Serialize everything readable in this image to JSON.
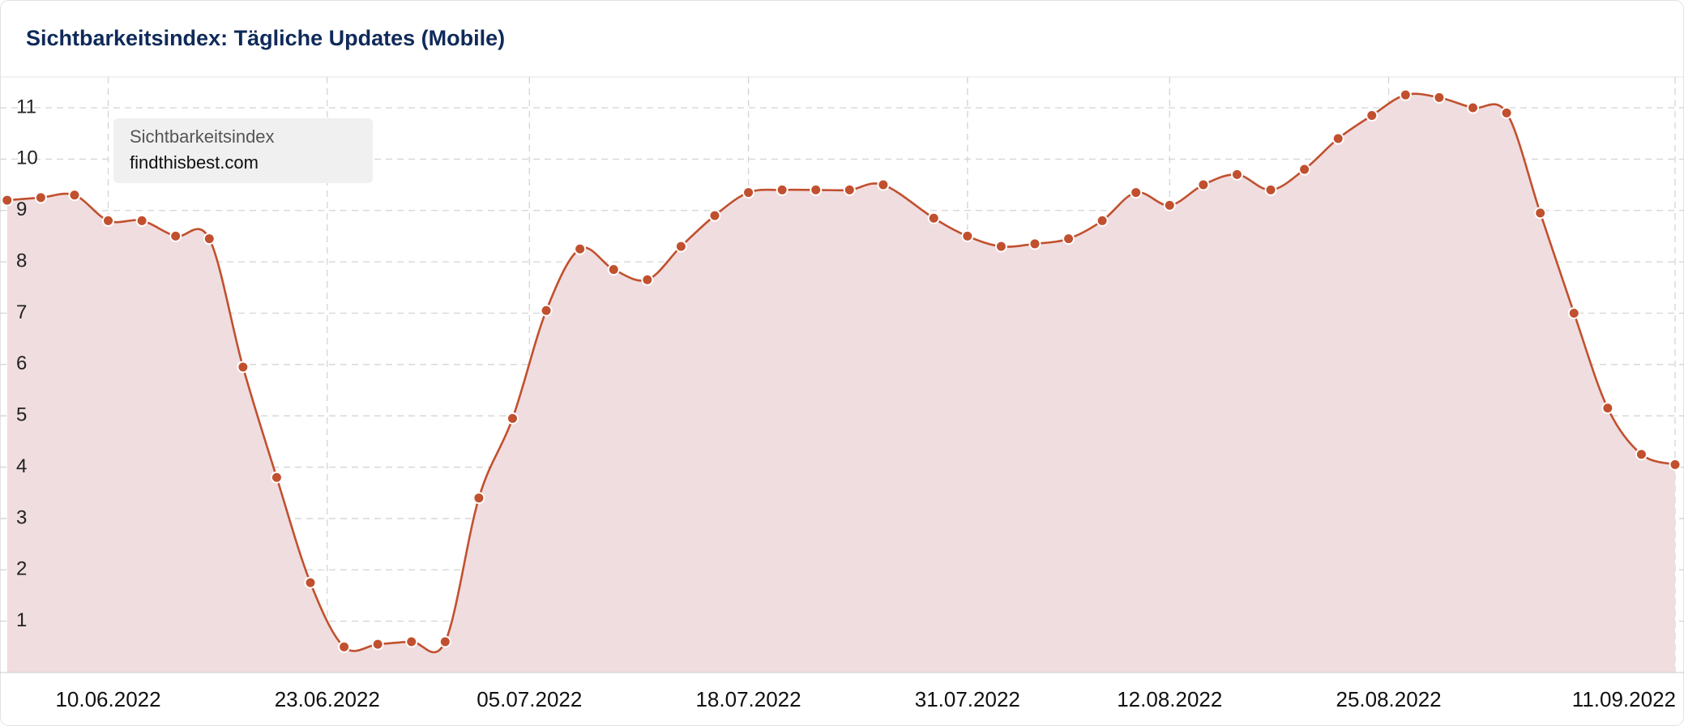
{
  "chart_data": {
    "type": "area-line",
    "title": "Sichtbarkeitsindex: Tägliche Updates (Mobile)",
    "legend_title": "Sichtbarkeitsindex",
    "legend_position": "upper left",
    "x": [
      "04.06.2022",
      "06.06.2022",
      "08.06.2022",
      "10.06.2022",
      "12.06.2022",
      "14.06.2022",
      "16.06.2022",
      "18.06.2022",
      "20.06.2022",
      "22.06.2022",
      "24.06.2022",
      "26.06.2022",
      "28.06.2022",
      "30.06.2022",
      "02.07.2022",
      "04.07.2022",
      "06.07.2022",
      "08.07.2022",
      "10.07.2022",
      "12.07.2022",
      "14.07.2022",
      "16.07.2022",
      "18.07.2022",
      "20.07.2022",
      "22.07.2022",
      "24.07.2022",
      "26.07.2022",
      "29.07.2022",
      "31.07.2022",
      "02.08.2022",
      "04.08.2022",
      "06.08.2022",
      "08.08.2022",
      "10.08.2022",
      "12.08.2022",
      "14.08.2022",
      "16.08.2022",
      "18.08.2022",
      "20.08.2022",
      "22.08.2022",
      "24.08.2022",
      "26.08.2022",
      "28.08.2022",
      "30.08.2022",
      "01.09.2022",
      "03.09.2022",
      "05.09.2022",
      "07.09.2022",
      "09.09.2022",
      "11.09.2022"
    ],
    "series": [
      {
        "name": "findthisbest.com",
        "color": "#c1502e",
        "fill": "#f0dde0",
        "values": [
          9.2,
          9.25,
          9.3,
          8.8,
          8.8,
          8.5,
          8.45,
          5.95,
          3.8,
          1.75,
          0.5,
          0.55,
          0.6,
          0.6,
          3.4,
          4.95,
          7.05,
          8.25,
          7.85,
          7.65,
          8.3,
          8.9,
          9.35,
          9.4,
          9.4,
          9.4,
          9.5,
          8.85,
          8.5,
          8.3,
          8.35,
          8.45,
          8.8,
          9.35,
          9.1,
          9.5,
          9.7,
          9.4,
          9.8,
          10.4,
          10.85,
          11.25,
          11.2,
          11.0,
          10.9,
          8.95,
          7.0,
          5.15,
          4.25,
          4.05
        ]
      }
    ],
    "xlim": [
      "03.06.2022",
      "11.09.2022"
    ],
    "xticks": [
      "10.06.2022",
      "23.06.2022",
      "05.07.2022",
      "18.07.2022",
      "31.07.2022",
      "12.08.2022",
      "25.08.2022",
      "11.09.2022"
    ],
    "ylim": [
      0,
      11.6
    ],
    "yticks": [
      1,
      2,
      3,
      4,
      5,
      6,
      7,
      8,
      9,
      10,
      11
    ],
    "grid": true
  }
}
